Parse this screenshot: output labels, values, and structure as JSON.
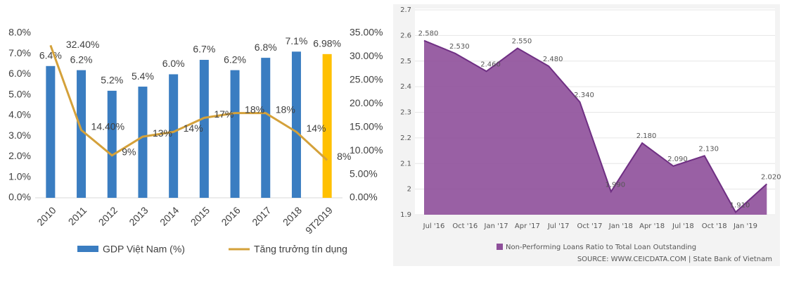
{
  "chart_data": [
    {
      "type": "bar",
      "categories": [
        "2010",
        "2011",
        "2012",
        "2013",
        "2014",
        "2015",
        "2016",
        "2017",
        "2018",
        "9T2019"
      ],
      "ylim": [
        0,
        8
      ],
      "yticks": [
        {
          "value": 0,
          "label": "0.0%"
        },
        {
          "value": 1,
          "label": "1.0%"
        },
        {
          "value": 2,
          "label": "2.0%"
        },
        {
          "value": 3,
          "label": "3.0%"
        },
        {
          "value": 4,
          "label": "4.0%"
        },
        {
          "value": 5,
          "label": "5.0%"
        },
        {
          "value": 6,
          "label": "6.0%"
        },
        {
          "value": 7,
          "label": "7.0%"
        },
        {
          "value": 8,
          "label": "8.0%"
        }
      ],
      "y2lim": [
        0,
        35
      ],
      "y2ticks": [
        {
          "value": 0,
          "label": "0.00%"
        },
        {
          "value": 5,
          "label": "5.00%"
        },
        {
          "value": 10,
          "label": "10.00%"
        },
        {
          "value": 15,
          "label": "15.00%"
        },
        {
          "value": 20,
          "label": "20.00%"
        },
        {
          "value": 25,
          "label": "25.00%"
        },
        {
          "value": 30,
          "label": "30.00%"
        },
        {
          "value": 35,
          "label": "35.00%"
        }
      ],
      "series": [
        {
          "name": "GDP Việt Nam (%)",
          "type": "bar",
          "color": "#3a7dc1",
          "colors": [
            "#3a7dc1",
            "#3a7dc1",
            "#3a7dc1",
            "#3a7dc1",
            "#3a7dc1",
            "#3a7dc1",
            "#3a7dc1",
            "#3a7dc1",
            "#3a7dc1",
            "#ffc000"
          ],
          "values": [
            6.4,
            6.2,
            5.2,
            5.4,
            6.0,
            6.7,
            6.2,
            6.8,
            7.1,
            6.98
          ],
          "value_labels": [
            "6.4%",
            "6.2%",
            "5.2%",
            "5.4%",
            "6.0%",
            "6.7%",
            "6.2%",
            "6.8%",
            "7.1%",
            "6.98%"
          ]
        },
        {
          "name": "Tăng trưởng tín dụng",
          "type": "line",
          "axis": "y2",
          "color": "#d4a13a",
          "values": [
            32.4,
            14.4,
            9,
            13,
            14,
            17,
            18,
            18,
            14,
            8
          ],
          "value_labels": [
            "32.40%",
            "14.40%",
            "9%",
            "13%",
            "14%",
            "17%",
            "18%",
            "18%",
            "14%",
            "8%"
          ]
        }
      ],
      "legend": "bottom"
    },
    {
      "type": "area",
      "categories": [
        "Jul '16",
        "Oct '16",
        "Jan '17",
        "Apr '17",
        "Jul '17",
        "Oct '17",
        "Jan '18",
        "Apr '18",
        "Jul '18",
        "Oct '18",
        "Jan '19",
        null
      ],
      "ylim": [
        1.9,
        2.7
      ],
      "yticks": [
        1.9,
        2,
        2.1,
        2.2,
        2.3,
        2.4,
        2.5,
        2.6,
        2.7
      ],
      "grid": true,
      "series": [
        {
          "name": "Non-Performing Loans Ratio to Total Loan Outstanding",
          "color": "#8e4f9a",
          "values": [
            2.58,
            2.53,
            2.46,
            2.55,
            2.48,
            2.34,
            1.99,
            2.18,
            2.09,
            2.13,
            1.91,
            2.02
          ],
          "value_labels": [
            "2.580",
            "2.530",
            "2.460",
            "2.550",
            "2.480",
            "2.340",
            "1.990",
            "2.180",
            "2.090",
            "2.130",
            "1.910",
            "2.020"
          ]
        }
      ],
      "source": "SOURCE: WWW.CEICDATA.COM | State Bank of Vietnam"
    }
  ]
}
